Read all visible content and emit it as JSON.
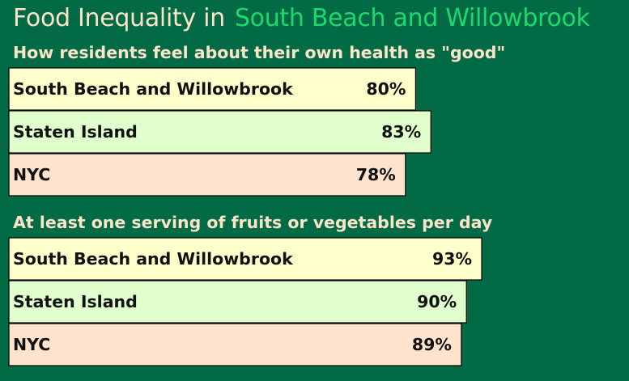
{
  "header": {
    "title_lead": "Food Inequality in",
    "title_place": "South Beach and Willowbrook"
  },
  "colors": {
    "background": "#036a46",
    "title_lead": "#fbe5c9",
    "title_place": "#1fd86c",
    "section_title": "#fbe5c9",
    "bar_borders": "#000000"
  },
  "chart_data": [
    {
      "type": "bar",
      "orientation": "horizontal",
      "title": "How residents feel about their own health as \"good\"",
      "categories": [
        "South Beach and Willowbrook",
        "Staten Island",
        "NYC"
      ],
      "values": [
        80,
        83,
        78
      ],
      "value_labels": [
        "80%",
        "83%",
        "78%"
      ],
      "colors": [
        "#ffffcc",
        "#e0ffcc",
        "#ffe3cc"
      ],
      "unit": "%",
      "xlim": [
        0,
        100
      ],
      "grid": false,
      "legend": "none"
    },
    {
      "type": "bar",
      "orientation": "horizontal",
      "title": "At least one serving of fruits or vegetables per day",
      "categories": [
        "South Beach and Willowbrook",
        "Staten Island",
        "NYC"
      ],
      "values": [
        93,
        90,
        89
      ],
      "value_labels": [
        "93%",
        "90%",
        "89%"
      ],
      "colors": [
        "#ffffcc",
        "#e0ffcc",
        "#ffe3cc"
      ],
      "unit": "%",
      "xlim": [
        0,
        100
      ],
      "grid": false,
      "legend": "none"
    }
  ]
}
